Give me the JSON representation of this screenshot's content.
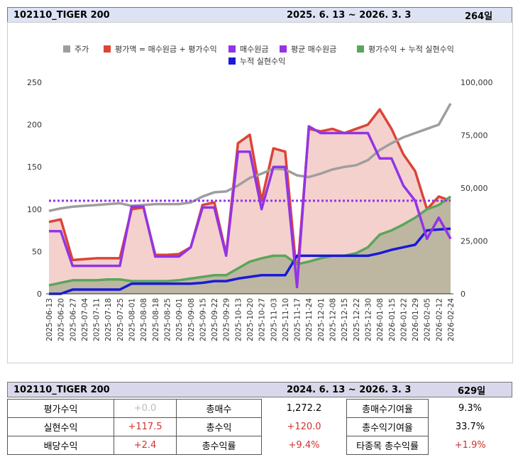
{
  "header": {
    "title": "102110_TIGER 200",
    "period": "2025. 6. 13  ~ 2026. 3. 3",
    "days": "264일"
  },
  "chart_data": {
    "type": "line",
    "categories": [
      "2025-06-13",
      "2025-06-20",
      "2025-06-27",
      "2025-07-04",
      "2025-07-11",
      "2025-07-18",
      "2025-07-25",
      "2025-08-01",
      "2025-08-08",
      "2025-08-18",
      "2025-08-25",
      "2025-09-01",
      "2025-09-08",
      "2025-09-15",
      "2025-09-22",
      "2025-09-29",
      "2025-10-13",
      "2025-10-20",
      "2025-10-27",
      "2025-11-03",
      "2025-11-10",
      "2025-11-17",
      "2025-11-24",
      "2025-12-01",
      "2025-12-08",
      "2025-12-15",
      "2025-12-22",
      "2025-12-30",
      "2026-01-08",
      "2026-01-15",
      "2026-01-22",
      "2026-01-29",
      "2026-02-05",
      "2026-02-12",
      "2026-02-24"
    ],
    "ylim": [
      0,
      250
    ],
    "yticks": [
      0,
      50,
      100,
      150,
      200,
      250
    ],
    "y2lim": [
      0,
      100000
    ],
    "y2ticks": [
      0,
      {
        "value": 25000,
        "label": "25,000"
      },
      {
        "value": 50000,
        "label": "50,000"
      },
      {
        "value": 75000,
        "label": "75,000"
      },
      {
        "value": 100000,
        "label": "100,000"
      }
    ],
    "series": [
      {
        "name": "주가",
        "color": "#9e9e9e",
        "values": [
          98,
          101,
          103,
          104,
          105,
          106,
          107,
          104,
          105,
          106,
          106,
          106,
          108,
          115,
          120,
          121,
          128,
          137,
          142,
          148,
          147,
          140,
          138,
          142,
          147,
          150,
          152,
          158,
          170,
          178,
          185,
          190,
          195,
          200,
          225
        ]
      },
      {
        "name": "평가액 = 매수원금 + 평가수익",
        "color": "#db4437",
        "fill": "#f2c9c4",
        "axis": "y2",
        "values": [
          34000,
          35200,
          16000,
          16400,
          16800,
          16800,
          16800,
          40000,
          40800,
          18400,
          18400,
          18800,
          22000,
          42000,
          43200,
          18800,
          71200,
          75200,
          44000,
          68800,
          67200,
          8000,
          78000,
          76800,
          78000,
          76000,
          78000,
          80000,
          87200,
          78000,
          66000,
          58000,
          40000,
          46000,
          44000
        ]
      },
      {
        "name": "매수원금",
        "color": "#9334e6",
        "axis": "y2",
        "values": [
          29600,
          29600,
          13200,
          13200,
          13200,
          13200,
          13200,
          41200,
          41200,
          17600,
          17600,
          17600,
          22000,
          40800,
          40800,
          18000,
          67200,
          67200,
          40000,
          60000,
          60000,
          3200,
          79200,
          76000,
          76000,
          76000,
          76000,
          76000,
          64000,
          64000,
          51200,
          44000,
          26000,
          36000,
          26000
        ]
      },
      {
        "name": "평균 매수원금",
        "color": "#9334e6",
        "dashed": true,
        "axis": "y2",
        "values": [
          44000,
          44000,
          44000,
          44000,
          44000,
          44000,
          44000,
          44000,
          44000,
          44000,
          44000,
          44000,
          44000,
          44000,
          44000,
          44000,
          44000,
          44000,
          44000,
          44000,
          44000,
          44000,
          44000,
          44000,
          44000,
          44000,
          44000,
          44000,
          44000,
          44000,
          44000,
          44000,
          44000,
          44000,
          44000
        ]
      },
      {
        "name": "평가수익 + 누적 실현수익",
        "color": "#5aa65a",
        "fill": "#b3b39a",
        "axis": "y2",
        "values": [
          4000,
          5200,
          6400,
          6400,
          6400,
          6800,
          6800,
          6000,
          6000,
          6000,
          6000,
          6400,
          7200,
          8000,
          8800,
          8800,
          12000,
          15200,
          16800,
          18000,
          18000,
          14000,
          15200,
          16800,
          18000,
          18000,
          19200,
          22000,
          28000,
          30000,
          32800,
          36000,
          40000,
          42000,
          46000
        ]
      },
      {
        "name": "누적 실현수익",
        "color": "#1a1ad6",
        "axis": "y2",
        "values": [
          0,
          0,
          2000,
          2000,
          2000,
          2000,
          2000,
          4800,
          4800,
          4800,
          4800,
          4800,
          4800,
          5200,
          6000,
          6000,
          7200,
          8000,
          8800,
          8800,
          8800,
          18000,
          18000,
          18000,
          18000,
          18000,
          18000,
          18000,
          19200,
          20800,
          22000,
          23200,
          30000,
          30400,
          30800
        ]
      }
    ]
  },
  "table": {
    "header": {
      "title": "102110_TIGER 200",
      "period": "2024. 6. 13  ~ 2026. 3. 3",
      "days": "629일"
    },
    "rows": [
      [
        "평가수익",
        "+0.0",
        "총매수",
        "1,272.2",
        "총매수기여율",
        "9.3%"
      ],
      [
        "실현수익",
        "+117.5",
        "총수익",
        "+120.0",
        "총수익기여율",
        "33.7%"
      ],
      [
        "배당수익",
        "+2.4",
        "총수익률",
        "+9.4%",
        "타종목 총수익률",
        "+1.9%"
      ]
    ]
  }
}
